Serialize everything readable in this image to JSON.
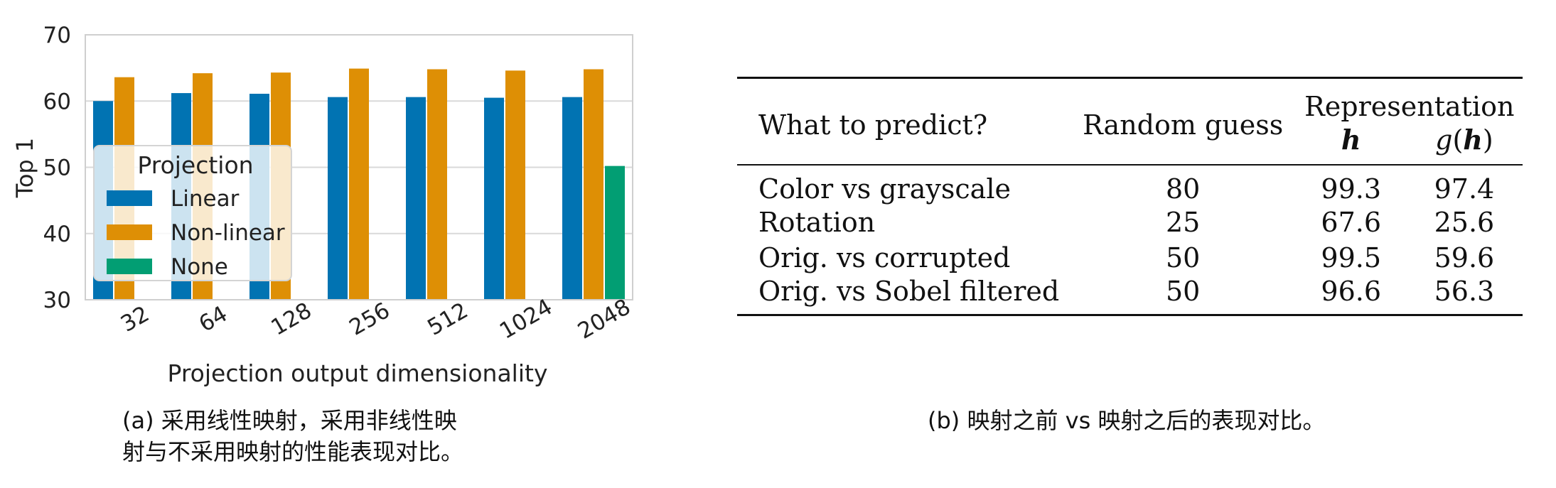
{
  "chart_data": {
    "type": "bar",
    "categories": [
      "32",
      "64",
      "128",
      "256",
      "512",
      "1024",
      "2048"
    ],
    "series": [
      {
        "name": "Linear",
        "values": [
          60.0,
          61.2,
          61.1,
          60.6,
          60.6,
          60.5,
          60.6
        ],
        "color": "#0173b2"
      },
      {
        "name": "Non-linear",
        "values": [
          63.6,
          64.2,
          64.3,
          64.9,
          64.8,
          64.6,
          64.8
        ],
        "color": "#de8f05"
      },
      {
        "name": "None",
        "values": [
          null,
          null,
          null,
          null,
          null,
          null,
          50.2
        ],
        "color": "#029e73"
      }
    ],
    "xlabel": "Projection output dimensionality",
    "ylabel": "Top 1",
    "ylim": [
      30,
      70
    ],
    "yticks": [
      "30",
      "40",
      "50",
      "60",
      "70"
    ],
    "legend_title": "Projection",
    "legend_position": "center-left",
    "grid": true
  },
  "caption_a": {
    "line1": "(a) 采用线性映射，采用非线性映",
    "line2": "射与不采用映射的性能表现对比。"
  },
  "table": {
    "header": {
      "col1": "What to predict?",
      "col2": "Random guess",
      "group": "Representation",
      "col3": "h",
      "col4_g": "g",
      "col4_open": "(",
      "col4_h": "h",
      "col4_close": ")"
    },
    "rows": [
      [
        "Color vs grayscale",
        "80",
        "99.3",
        "97.4"
      ],
      [
        "Rotation",
        "25",
        "67.6",
        "25.6"
      ],
      [
        "Orig. vs corrupted",
        "50",
        "99.5",
        "59.6"
      ],
      [
        "Orig. vs Sobel filtered",
        "50",
        "96.6",
        "56.3"
      ]
    ]
  },
  "caption_b": {
    "text": "(b) 映射之前 vs 映射之后的表现对比。"
  }
}
